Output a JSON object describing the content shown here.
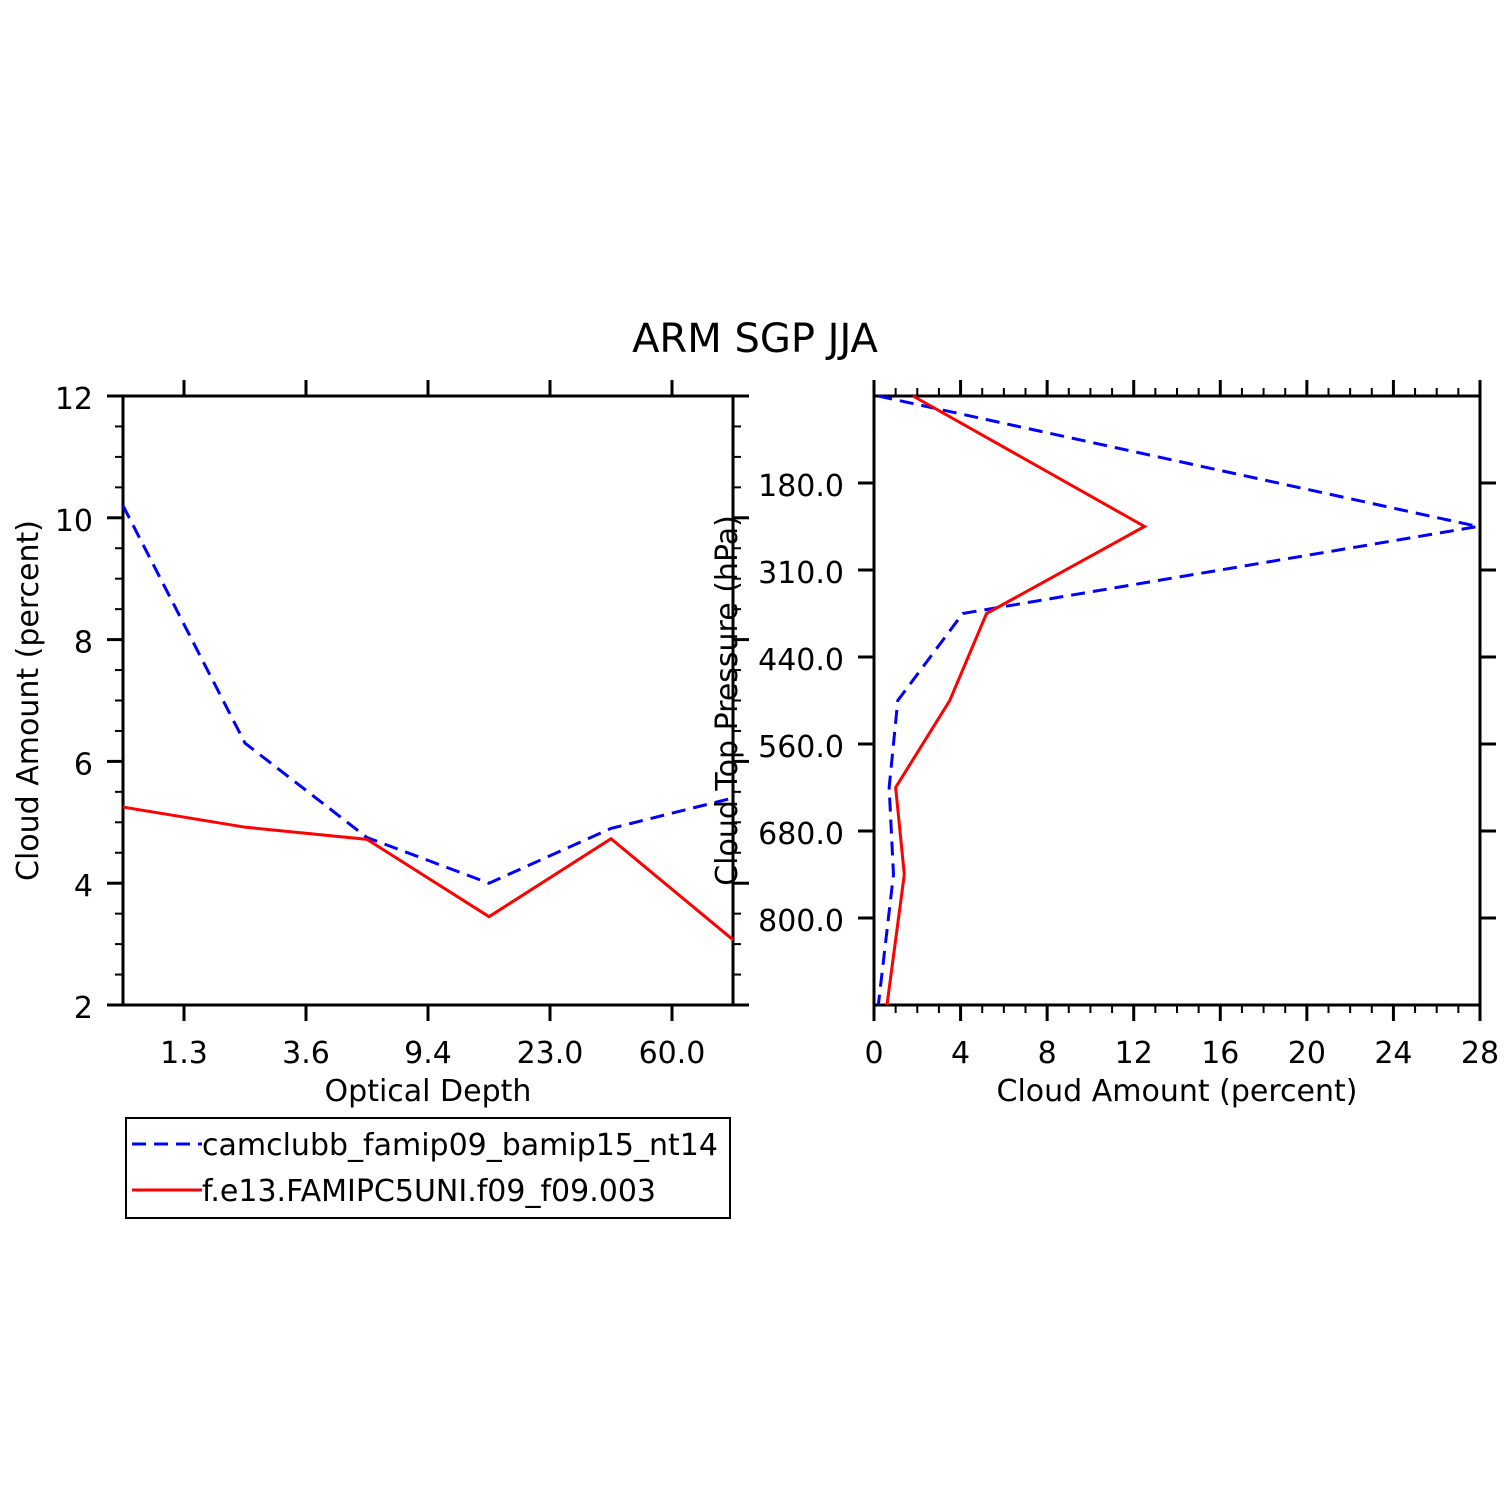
{
  "title": "ARM SGP JJA",
  "chart_data": [
    {
      "type": "line",
      "xlabel": "Optical Depth",
      "ylabel": "Cloud Amount (percent)",
      "ylim": [
        2,
        12
      ],
      "y_ticks": [
        2,
        4,
        6,
        8,
        10,
        12
      ],
      "x_tick_labels": [
        "1.3",
        "3.6",
        "9.4",
        "23.0",
        "60.0"
      ],
      "x_positions": [
        0,
        1,
        2,
        3,
        4,
        5
      ],
      "series": [
        {
          "name": "camclubb_famip09_bamip15_nt14",
          "color": "#0000ff",
          "dash": true,
          "values": [
            10.2,
            6.3,
            4.75,
            4.0,
            4.9,
            5.4
          ]
        },
        {
          "name": "f.e13.FAMIPC5UNI.f09_f09.003",
          "color": "#ff0000",
          "dash": false,
          "values": [
            5.25,
            4.92,
            4.72,
            3.45,
            4.73,
            3.07
          ]
        }
      ]
    },
    {
      "type": "line",
      "xlabel": "Cloud Amount (percent)",
      "ylabel": "Cloud Top Pressure (hPa)",
      "xlim": [
        0,
        28
      ],
      "x_ticks": [
        0,
        4,
        8,
        12,
        16,
        20,
        24,
        28
      ],
      "y_tick_labels": [
        "180.0",
        "310.0",
        "440.0",
        "560.0",
        "680.0",
        "800.0"
      ],
      "y_positions": [
        0,
        1,
        2,
        3,
        4,
        5,
        6
      ],
      "series": [
        {
          "name": "camclubb_famip09_bamip15_nt14",
          "color": "#0000ff",
          "dash": true,
          "values": [
            0.2,
            27.9,
            4.1,
            1.1,
            0.7,
            0.9,
            0.2
          ]
        },
        {
          "name": "f.e13.FAMIPC5UNI.f09_f09.003",
          "color": "#ff0000",
          "dash": false,
          "values": [
            1.8,
            12.5,
            5.2,
            3.5,
            1.0,
            1.4,
            0.6
          ]
        }
      ]
    }
  ],
  "legend": [
    {
      "label": "camclubb_famip09_bamip15_nt14",
      "color": "#0000ff",
      "dash": true
    },
    {
      "label": "f.e13.FAMIPC5UNI.f09_f09.003",
      "color": "#ff0000",
      "dash": false
    }
  ]
}
